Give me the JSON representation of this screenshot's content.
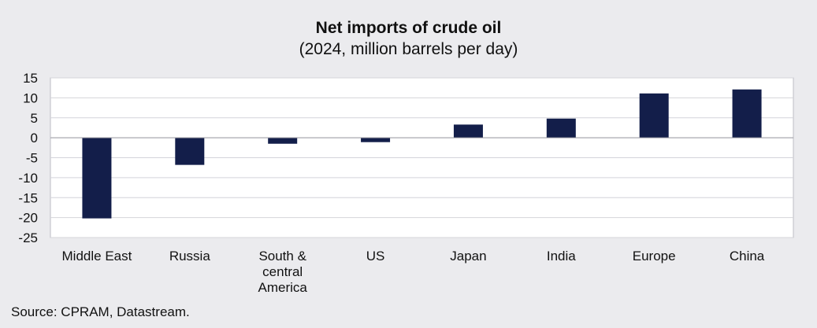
{
  "chart_data": {
    "type": "bar",
    "title": "Net imports of crude oil",
    "subtitle": "(2024, million barrels per day)",
    "categories": [
      "Middle East",
      "Russia",
      "South & central America",
      "US",
      "Japan",
      "India",
      "Europe",
      "China"
    ],
    "category_lines": [
      [
        "Middle East"
      ],
      [
        "Russia"
      ],
      [
        "South &",
        "central",
        "America"
      ],
      [
        "US"
      ],
      [
        "Japan"
      ],
      [
        "India"
      ],
      [
        "Europe"
      ],
      [
        "China"
      ]
    ],
    "values": [
      -20.2,
      -6.8,
      -1.5,
      -1.1,
      3.3,
      4.8,
      11.1,
      12.1
    ],
    "ylim": [
      -25,
      15
    ],
    "yticks": [
      15,
      10,
      5,
      0,
      -5,
      -10,
      -15,
      -20,
      -25
    ],
    "grid": true,
    "bar_color": "#131e4a"
  },
  "source": "Source: CPRAM, Datastream."
}
